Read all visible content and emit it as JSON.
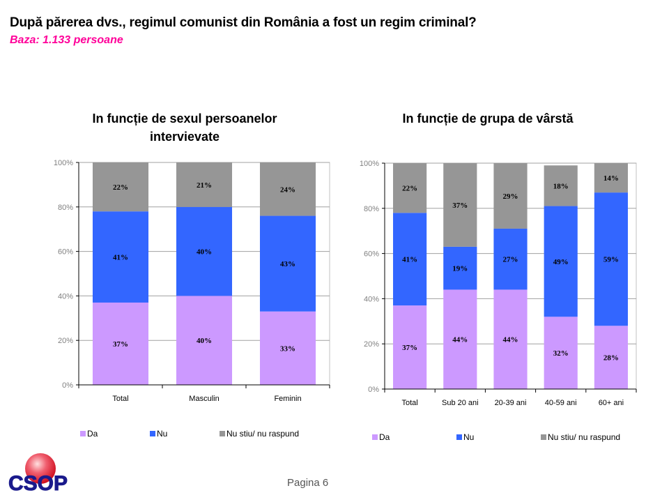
{
  "page": {
    "title": "După părerea dvs., regimul comunist din România a fost un regim criminal?",
    "subtitle": "Baza: 1.133 persoane",
    "footer": "Pagina 6",
    "logo_text": "CSOP"
  },
  "colors": {
    "Da": "#cc99ff",
    "Nu": "#3366ff",
    "Nu stiu/ nu raspund": "#969696",
    "subtitle": "#ff0099",
    "logo_text": "#1a1a8c",
    "logo_ball": "#e8303a"
  },
  "chart_data": [
    {
      "type": "bar",
      "stacked": true,
      "title": "In funcție de sexul persoanelor intervievate",
      "title_lines": [
        "In funcție de sexul persoanelor",
        "intervievate"
      ],
      "categories": [
        "Total",
        "Masculin",
        "Feminin"
      ],
      "series": [
        {
          "name": "Da",
          "values": [
            37,
            40,
            33
          ],
          "labels": [
            "37%",
            "40%",
            "33%"
          ]
        },
        {
          "name": "Nu",
          "values": [
            41,
            40,
            43
          ],
          "labels": [
            "41%",
            "40%",
            "43%"
          ]
        },
        {
          "name": "Nu stiu/ nu raspund",
          "values": [
            22,
            21,
            24
          ],
          "labels": [
            "22%",
            "21%",
            "24%"
          ]
        }
      ],
      "yticks": [
        "0%",
        "20%",
        "40%",
        "60%",
        "80%",
        "100%"
      ],
      "ylim": [
        0,
        100
      ],
      "xlabel": "",
      "ylabel": "",
      "grid": true,
      "legend": [
        "Da",
        "Nu",
        "Nu stiu/ nu raspund"
      ],
      "legend_position": "bottom"
    },
    {
      "type": "bar",
      "stacked": true,
      "title": "In funcție de grupa de vârstă",
      "title_lines": [
        "In funcție de grupa de vârstă"
      ],
      "categories": [
        "Total",
        "Sub 20 ani",
        "20-39 ani",
        "40-59 ani",
        "60+ ani"
      ],
      "series": [
        {
          "name": "Da",
          "values": [
            37,
            44,
            44,
            32,
            28
          ],
          "labels": [
            "37%",
            "44%",
            "44%",
            "32%",
            "28%"
          ]
        },
        {
          "name": "Nu",
          "values": [
            41,
            19,
            27,
            49,
            59
          ],
          "labels": [
            "41%",
            "19%",
            "27%",
            "49%",
            "59%"
          ]
        },
        {
          "name": "Nu stiu/ nu raspund",
          "values": [
            22,
            37,
            29,
            18,
            14
          ],
          "labels": [
            "22%",
            "37%",
            "29%",
            "18%",
            "14%"
          ]
        }
      ],
      "yticks": [
        "0%",
        "20%",
        "40%",
        "60%",
        "80%",
        "100%"
      ],
      "ylim": [
        0,
        100
      ],
      "xlabel": "",
      "ylabel": "",
      "grid": true,
      "legend": [
        "Da",
        "Nu",
        "Nu stiu/ nu raspund"
      ],
      "legend_position": "bottom"
    }
  ]
}
